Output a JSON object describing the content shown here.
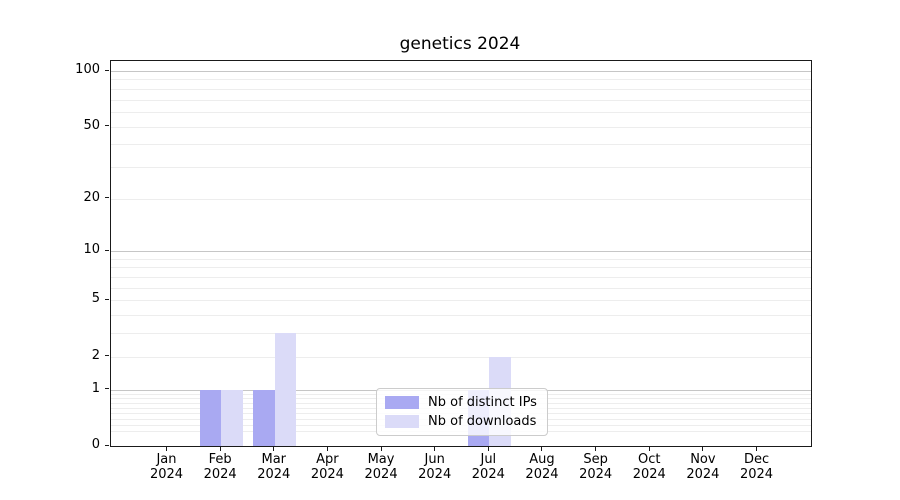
{
  "figure": {
    "title": "genetics 2024"
  },
  "chart_data": {
    "type": "bar",
    "title": "genetics 2024",
    "xlabel": "",
    "ylabel": "",
    "categories": [
      "Jan",
      "Feb",
      "Mar",
      "Apr",
      "May",
      "Jun",
      "Jul",
      "Aug",
      "Sep",
      "Oct",
      "Nov",
      "Dec"
    ],
    "x_tick_second_line": "2024",
    "series": [
      {
        "name": "Nb of distinct IPs",
        "color": "#a9a9f2",
        "values": [
          0,
          1,
          1,
          0,
          0,
          0,
          1,
          0,
          0,
          0,
          0,
          0
        ]
      },
      {
        "name": "Nb of downloads",
        "color": "#dbdbf8",
        "values": [
          0,
          1,
          3,
          0,
          0,
          0,
          2,
          0,
          0,
          0,
          0,
          0
        ]
      }
    ],
    "y_scale": "log1p",
    "y_axis_max": 100,
    "y_ticks": [
      0,
      1,
      2,
      5,
      10,
      20,
      50,
      100
    ],
    "y_major_gridlines": [
      1,
      10,
      100
    ],
    "y_minor_gridlines": [
      0.2,
      0.3,
      0.4,
      0.5,
      0.6,
      0.7,
      0.8,
      0.9,
      2,
      3,
      4,
      5,
      6,
      7,
      8,
      9,
      20,
      30,
      40,
      50,
      60,
      70,
      80,
      90
    ],
    "grid": true,
    "legend_position": "lower center",
    "colors": {
      "background": "#ffffff",
      "axis": "#1a1a1a",
      "major_grid": "#c6c6c6",
      "minor_grid": "#ededed",
      "legend_border": "#cccccc"
    }
  }
}
